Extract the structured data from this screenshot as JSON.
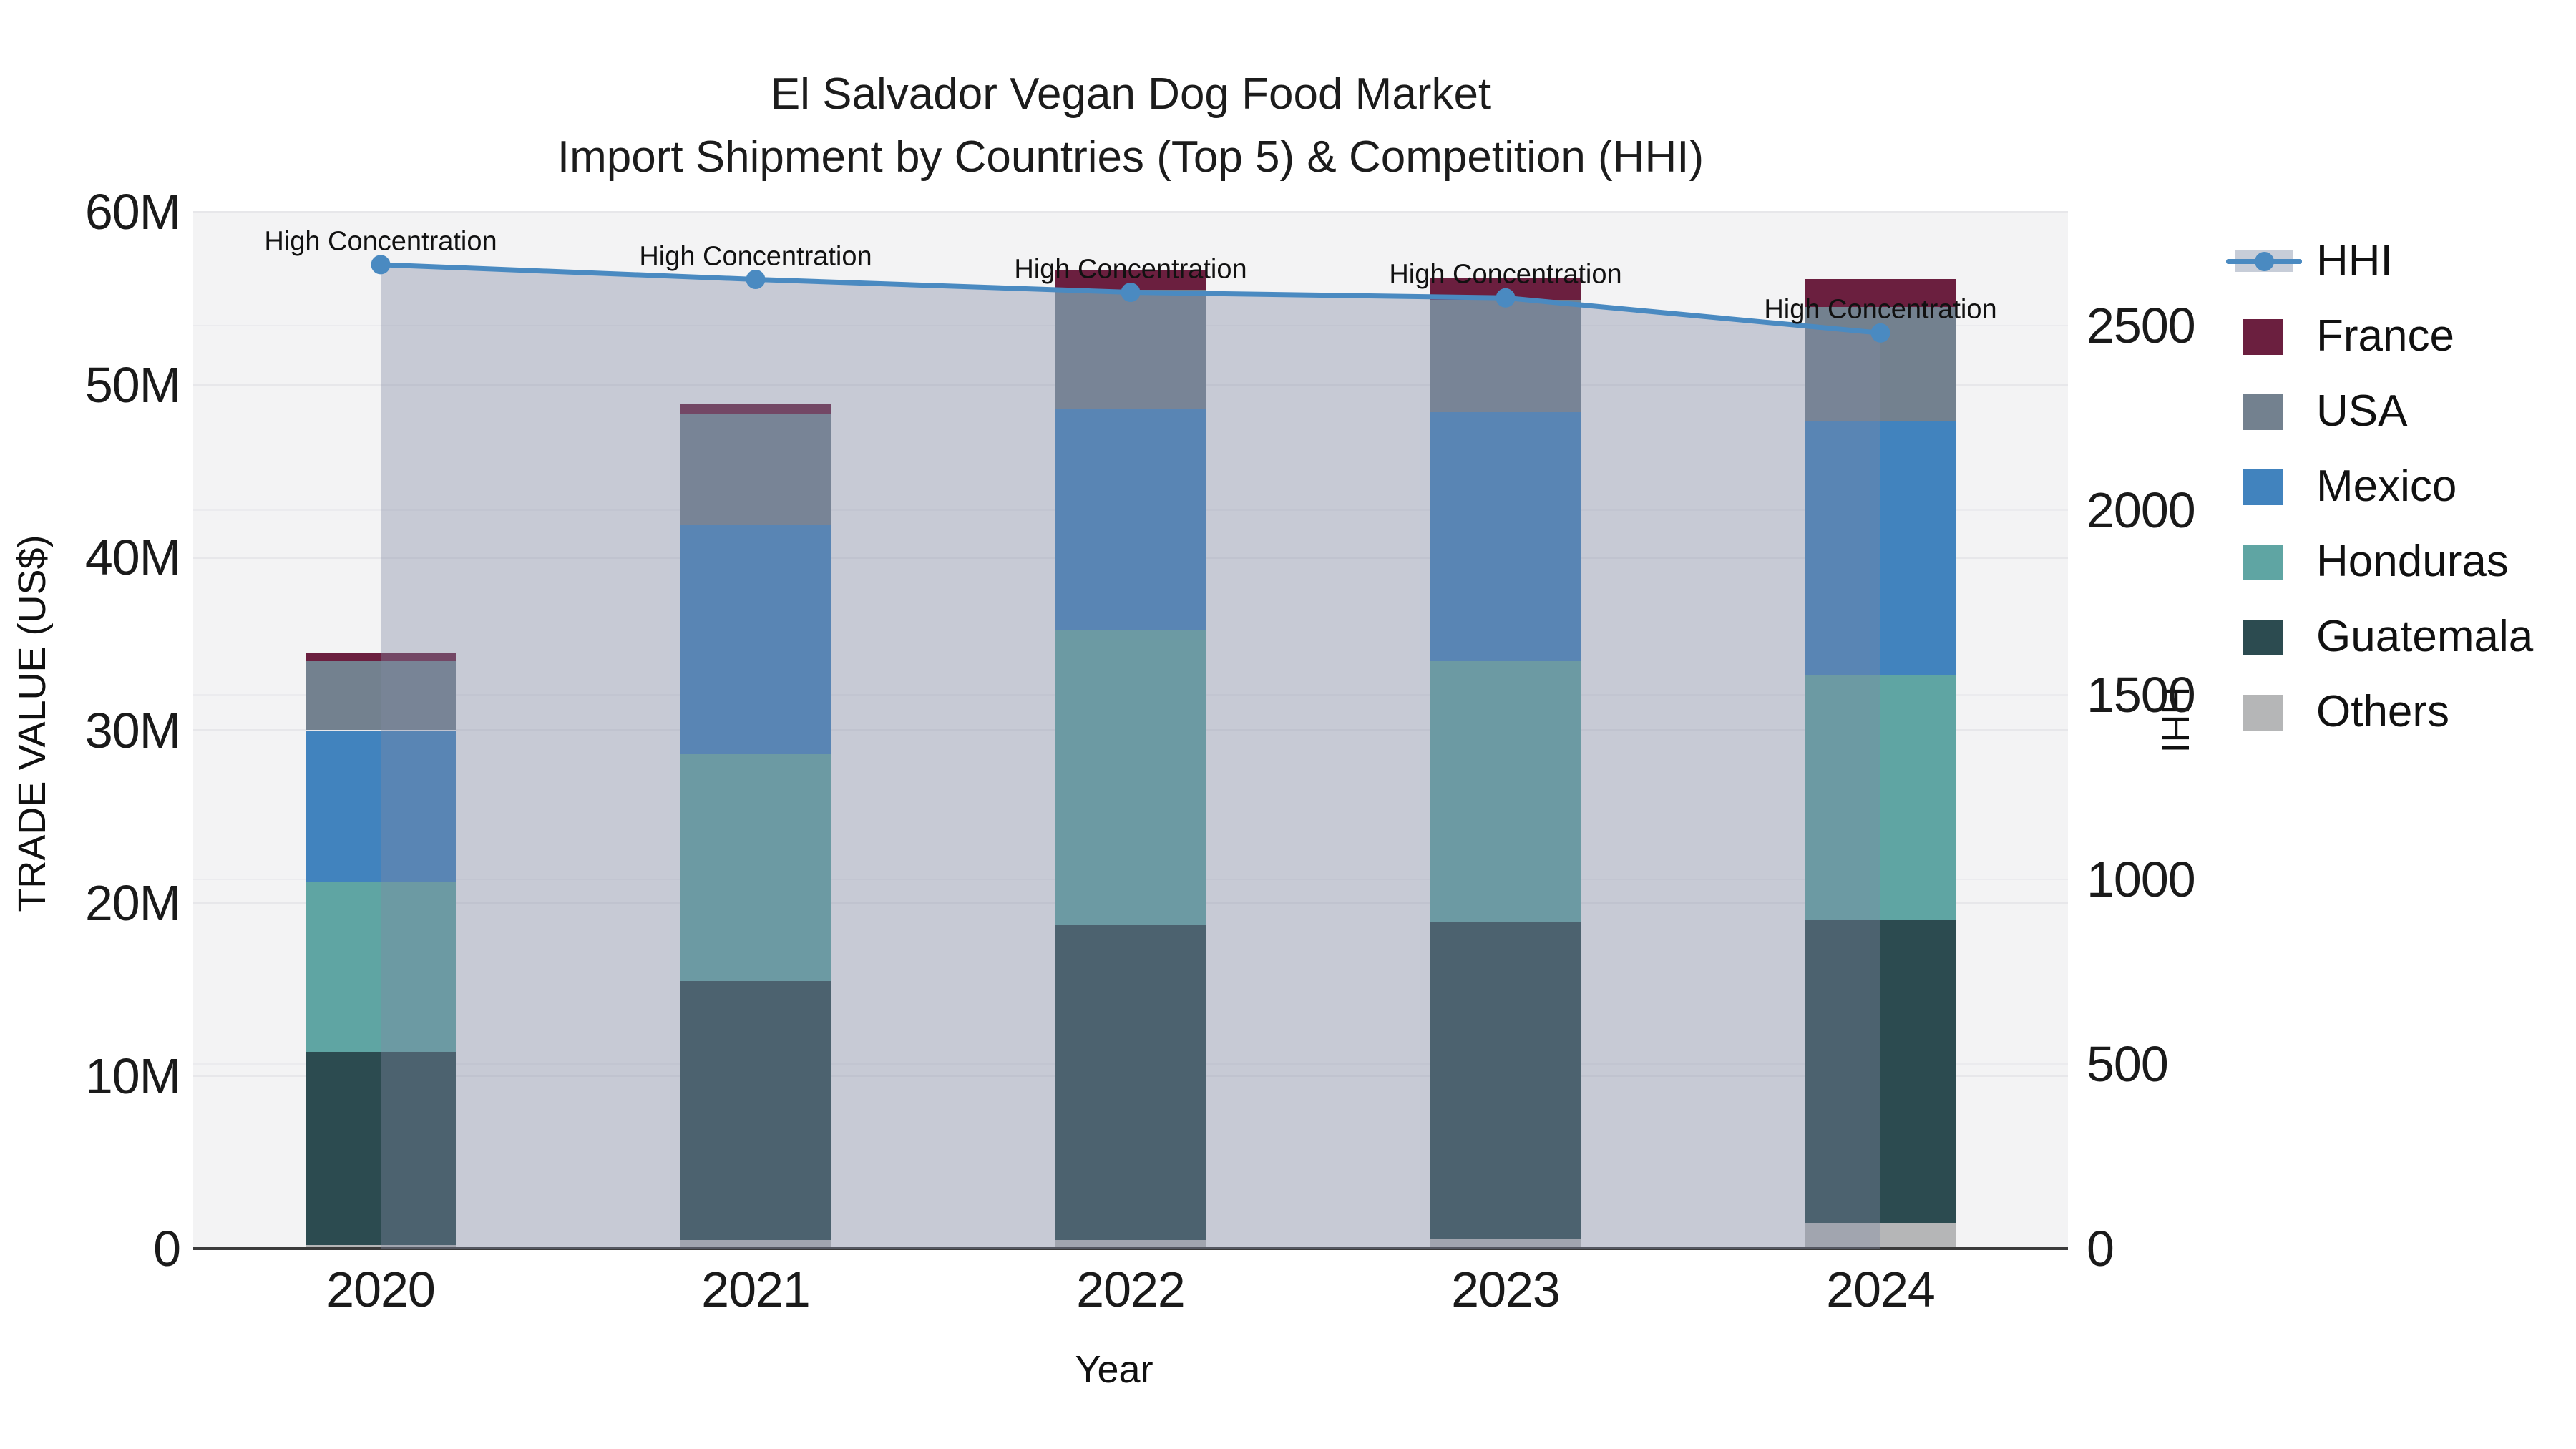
{
  "title": "El Salvador Vegan Dog Food Market",
  "subtitle": "Import Shipment by Countries (Top 5) & Competition (HHI)",
  "x_axis": {
    "title": "Year",
    "ticks": [
      "2020",
      "2021",
      "2022",
      "2023",
      "2024"
    ]
  },
  "y_axis": {
    "title": "TRADE VALUE (US$)",
    "ticks": [
      "0",
      "10M",
      "20M",
      "30M",
      "40M",
      "50M",
      "60M"
    ]
  },
  "y2_axis": {
    "title": "HHI",
    "ticks": [
      "0",
      "500",
      "1000",
      "1500",
      "2000",
      "2500"
    ]
  },
  "annotation_text": "High Concentration",
  "colors": {
    "plot_background": "#f3f3f4",
    "grid": "#e7e7ea",
    "axis_line": "#3b3b3b",
    "hhi_line": "#4a8ac1",
    "hhi_fill": "rgba(129,138,163,0.38)",
    "france": "#6b1f3f",
    "usa": "#73818f",
    "mexico": "#4183be",
    "honduras": "#5fa5a3",
    "guatemala": "#2c4b50",
    "others": "#b5b6b7"
  },
  "legend": [
    {
      "id": "hhi",
      "label": "HHI",
      "type": "line"
    },
    {
      "id": "france",
      "label": "France",
      "type": "swatch",
      "color": "#6b1f3f"
    },
    {
      "id": "usa",
      "label": "USA",
      "type": "swatch",
      "color": "#73818f"
    },
    {
      "id": "mexico",
      "label": "Mexico",
      "type": "swatch",
      "color": "#4183be"
    },
    {
      "id": "honduras",
      "label": "Honduras",
      "type": "swatch",
      "color": "#5fa5a3"
    },
    {
      "id": "guatemala",
      "label": "Guatemala",
      "type": "swatch",
      "color": "#2c4b50"
    },
    {
      "id": "others",
      "label": "Others",
      "type": "swatch",
      "color": "#b5b6b7"
    }
  ],
  "chart_data": {
    "type": "bar",
    "subtype": "stacked-bars-with-line",
    "title": "El Salvador Vegan Dog Food Market — Import Shipment by Countries (Top 5) & Competition (HHI)",
    "categories": [
      "2020",
      "2021",
      "2022",
      "2023",
      "2024"
    ],
    "xlabel": "Year",
    "ylabel": "TRADE VALUE (US$)",
    "y2label": "HHI",
    "unit": "million US$",
    "ylim": [
      0,
      60
    ],
    "y2lim": [
      0,
      2808
    ],
    "grid": true,
    "legend_position": "right",
    "series": [
      {
        "name": "Others",
        "color": "#b5b6b7",
        "values": [
          0.2,
          0.5,
          0.5,
          0.6,
          1.5
        ]
      },
      {
        "name": "Guatemala",
        "color": "#2c4b50",
        "values": [
          11.2,
          15.0,
          18.2,
          18.3,
          17.5
        ]
      },
      {
        "name": "Honduras",
        "color": "#5fa5a3",
        "values": [
          9.8,
          13.1,
          17.1,
          15.1,
          14.2
        ]
      },
      {
        "name": "Mexico",
        "color": "#4183be",
        "values": [
          8.8,
          13.3,
          12.8,
          14.4,
          14.7
        ]
      },
      {
        "name": "USA",
        "color": "#73818f",
        "values": [
          4.0,
          6.4,
          6.9,
          6.5,
          6.6
        ]
      },
      {
        "name": "France",
        "color": "#6b1f3f",
        "values": [
          0.5,
          0.6,
          1.1,
          1.3,
          1.6
        ]
      }
    ],
    "totals": [
      34.5,
      48.9,
      56.6,
      56.2,
      56.1
    ],
    "line_series": {
      "name": "HHI",
      "axis": "y2",
      "color": "#4a8ac1",
      "fill": "rgba(129,138,163,0.38)",
      "values": [
        2665,
        2625,
        2590,
        2575,
        2480
      ],
      "point_labels": [
        "High Concentration",
        "High Concentration",
        "High Concentration",
        "High Concentration",
        "High Concentration"
      ]
    }
  }
}
